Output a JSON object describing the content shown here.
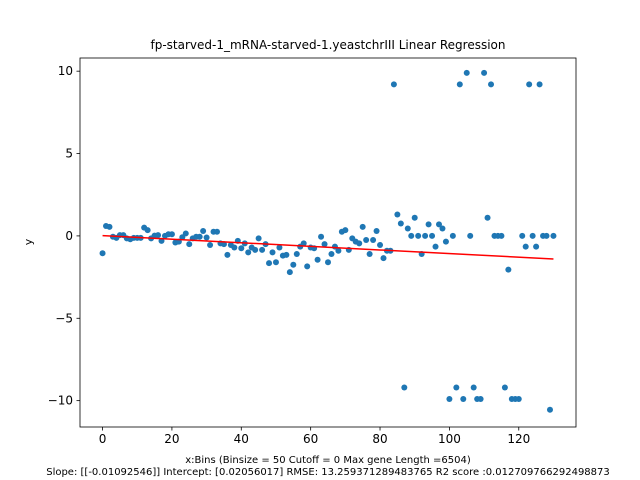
{
  "chart_data": {
    "type": "scatter",
    "title": "fp-starved-1_mRNA-starved-1.yeastchrIII Linear Regression",
    "xlabel": "x:Bins  (Binsize = 50 Cutoff = 0 Max gene Length =6504)",
    "xlabel2": "Slope: [[-0.01092546]] Intercept: [0.02056017] RMSE: 13.259371289483765 R2 score :0.012709766292498873",
    "ylabel": "y",
    "xlim": [
      -6.5,
      136.5
    ],
    "ylim": [
      -11.6,
      10.8
    ],
    "xticks": [
      0,
      20,
      40,
      60,
      80,
      100,
      120
    ],
    "yticks": [
      -10,
      -5,
      0,
      5,
      10
    ],
    "grid": false,
    "point_color": "#1f77b4",
    "line_color": "#ff0000",
    "regression": {
      "slope": -0.01092546,
      "intercept": 0.02056017,
      "x_range": [
        0,
        130
      ]
    },
    "points": [
      [
        0,
        -1.05
      ],
      [
        1,
        0.6
      ],
      [
        2,
        0.55
      ],
      [
        3,
        -0.05
      ],
      [
        4,
        -0.12
      ],
      [
        5,
        0.05
      ],
      [
        6,
        0.05
      ],
      [
        7,
        -0.15
      ],
      [
        8,
        -0.2
      ],
      [
        9,
        -0.12
      ],
      [
        10,
        -0.12
      ],
      [
        11,
        -0.12
      ],
      [
        12,
        0.5
      ],
      [
        13,
        0.35
      ],
      [
        14,
        -0.15
      ],
      [
        15,
        0.02
      ],
      [
        16,
        0.05
      ],
      [
        17,
        -0.3
      ],
      [
        18,
        0.0
      ],
      [
        19,
        0.1
      ],
      [
        20,
        0.1
      ],
      [
        21,
        -0.4
      ],
      [
        22,
        -0.35
      ],
      [
        23,
        -0.08
      ],
      [
        24,
        0.15
      ],
      [
        25,
        -0.5
      ],
      [
        26,
        -0.15
      ],
      [
        27,
        -0.05
      ],
      [
        28,
        -0.05
      ],
      [
        29,
        0.3
      ],
      [
        30,
        -0.1
      ],
      [
        31,
        -0.55
      ],
      [
        32,
        0.25
      ],
      [
        33,
        0.25
      ],
      [
        34,
        -0.45
      ],
      [
        35,
        -0.5
      ],
      [
        36,
        -1.15
      ],
      [
        37,
        -0.55
      ],
      [
        38,
        -0.7
      ],
      [
        39,
        -0.3
      ],
      [
        40,
        -0.75
      ],
      [
        41,
        -0.45
      ],
      [
        42,
        -1.0
      ],
      [
        43,
        -0.7
      ],
      [
        44,
        -0.85
      ],
      [
        45,
        -0.15
      ],
      [
        46,
        -0.85
      ],
      [
        47,
        -0.5
      ],
      [
        48,
        -1.65
      ],
      [
        49,
        -1.0
      ],
      [
        50,
        -1.6
      ],
      [
        51,
        -0.7
      ],
      [
        52,
        -1.2
      ],
      [
        53,
        -1.15
      ],
      [
        54,
        -2.2
      ],
      [
        55,
        -1.75
      ],
      [
        56,
        -1.1
      ],
      [
        57,
        -0.65
      ],
      [
        58,
        -0.45
      ],
      [
        59,
        -1.85
      ],
      [
        60,
        -0.7
      ],
      [
        61,
        -0.75
      ],
      [
        62,
        -1.45
      ],
      [
        63,
        -0.05
      ],
      [
        64,
        -0.5
      ],
      [
        65,
        -1.6
      ],
      [
        66,
        -1.1
      ],
      [
        67,
        -0.65
      ],
      [
        68,
        -0.9
      ],
      [
        69,
        0.25
      ],
      [
        70,
        0.35
      ],
      [
        71,
        -0.85
      ],
      [
        72,
        -0.15
      ],
      [
        73,
        -0.35
      ],
      [
        74,
        -0.45
      ],
      [
        75,
        0.55
      ],
      [
        76,
        -0.25
      ],
      [
        77,
        -1.1
      ],
      [
        78,
        -0.25
      ],
      [
        79,
        0.3
      ],
      [
        80,
        -0.55
      ],
      [
        81,
        -1.35
      ],
      [
        82,
        -0.9
      ],
      [
        83,
        -0.9
      ],
      [
        84,
        9.2
      ],
      [
        85,
        1.3
      ],
      [
        86,
        0.75
      ],
      [
        87,
        -9.2
      ],
      [
        88,
        0.45
      ],
      [
        89,
        0.0
      ],
      [
        90,
        1.1
      ],
      [
        91,
        0.0
      ],
      [
        92,
        -1.1
      ],
      [
        93,
        0.0
      ],
      [
        94,
        0.7
      ],
      [
        95,
        0.0
      ],
      [
        96,
        -0.65
      ],
      [
        97,
        0.7
      ],
      [
        98,
        0.45
      ],
      [
        99,
        -0.35
      ],
      [
        100,
        -9.9
      ],
      [
        101,
        0.0
      ],
      [
        102,
        -9.2
      ],
      [
        103,
        9.2
      ],
      [
        104,
        -9.9
      ],
      [
        105,
        9.9
      ],
      [
        106,
        0.0
      ],
      [
        107,
        -9.2
      ],
      [
        108,
        -9.9
      ],
      [
        109,
        -9.9
      ],
      [
        110,
        9.9
      ],
      [
        111,
        1.1
      ],
      [
        112,
        9.2
      ],
      [
        113,
        0.0
      ],
      [
        114,
        0.0
      ],
      [
        115,
        0.0
      ],
      [
        116,
        -9.2
      ],
      [
        117,
        -2.05
      ],
      [
        118,
        -9.9
      ],
      [
        119,
        -9.9
      ],
      [
        120,
        -9.9
      ],
      [
        121,
        0.0
      ],
      [
        122,
        -0.65
      ],
      [
        123,
        9.2
      ],
      [
        124,
        0.0
      ],
      [
        125,
        -0.65
      ],
      [
        126,
        9.2
      ],
      [
        127,
        0.0
      ],
      [
        128,
        0.0
      ],
      [
        129,
        -10.55
      ],
      [
        130,
        0.0
      ]
    ]
  }
}
